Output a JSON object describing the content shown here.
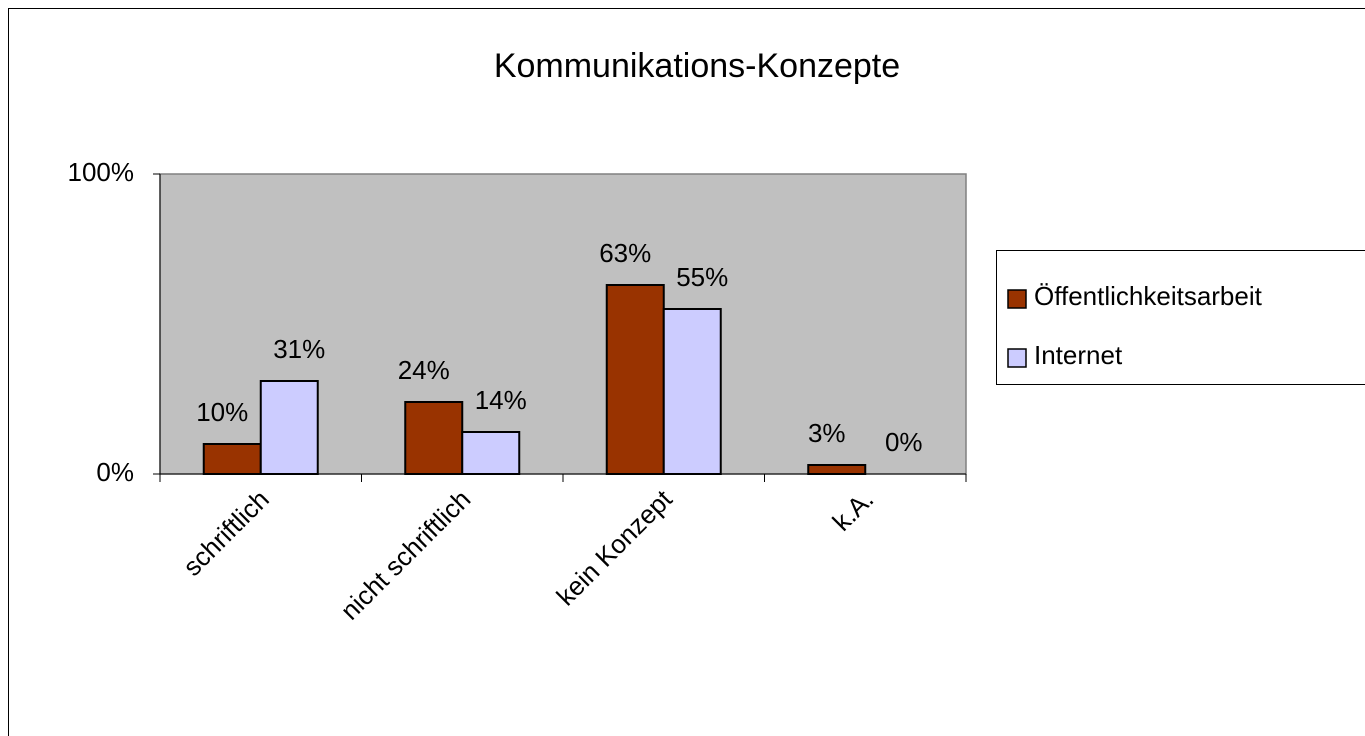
{
  "chart_data": {
    "type": "bar",
    "title": "Kommunikations-Konzepte",
    "categories": [
      "schriftlich",
      "nicht schriftlich",
      "kein Konzept",
      "k.A."
    ],
    "series": [
      {
        "name": "Öffentlichkeitsarbeit",
        "color": "#993300",
        "values": [
          10,
          24,
          63,
          3
        ],
        "value_labels": [
          "10%",
          "24%",
          "63%",
          "3%"
        ]
      },
      {
        "name": "Internet",
        "color": "#ccccff",
        "values": [
          31,
          14,
          55,
          0
        ],
        "value_labels": [
          "31%",
          "14%",
          "55%",
          "0%"
        ]
      }
    ],
    "ylim": [
      0,
      100
    ],
    "yticks": [
      {
        "value": 0,
        "label": "0%"
      },
      {
        "value": 100,
        "label": "100%"
      }
    ],
    "legend": "right"
  }
}
